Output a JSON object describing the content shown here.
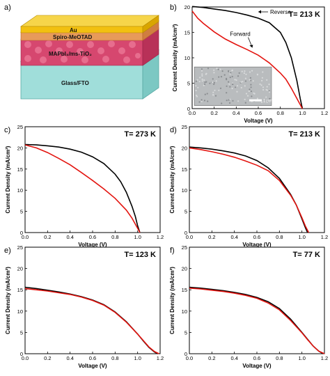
{
  "device": {
    "panel_label": "a)",
    "layers": [
      {
        "label": "Au",
        "color": "#f2c010"
      },
      {
        "label": "Spiro-MeOTAD",
        "color": "#e79a5a"
      },
      {
        "label": "MAPbI₃/ms-TiO₂",
        "color": "#d6476f"
      },
      {
        "label": "Glass/FTO",
        "color": "#8fd8d4"
      }
    ]
  },
  "colors": {
    "reverse": "#000000",
    "forward": "#e3140f",
    "inset_bg": "#b9bcbe"
  },
  "chart_data": [
    {
      "panel": "b)",
      "type": "line",
      "title": "T= 213 K",
      "xlabel": "Voltage (V)",
      "ylabel": "Current Density (mA/cm²)",
      "xlim": [
        0,
        1.2
      ],
      "ylim": [
        0,
        20
      ],
      "xticks": [
        "0.0",
        "0.2",
        "0.4",
        "0.6",
        "0.8",
        "1.0",
        "1.2"
      ],
      "yticks": [
        "0",
        "5",
        "10",
        "15",
        "20"
      ],
      "annotations": [
        "Reverse",
        "Forward"
      ],
      "inset_scale": "1 µm",
      "series": [
        {
          "name": "Reverse",
          "color": "#000000",
          "x": [
            0,
            0.1,
            0.2,
            0.3,
            0.4,
            0.5,
            0.6,
            0.7,
            0.8,
            0.85,
            0.9,
            0.95,
            0.98,
            1.0
          ],
          "y": [
            20.1,
            19.9,
            19.6,
            19.3,
            18.9,
            18.4,
            17.8,
            16.9,
            15.0,
            13.0,
            10.0,
            5.5,
            2.0,
            0
          ]
        },
        {
          "name": "Forward",
          "color": "#e3140f",
          "x": [
            0,
            0.05,
            0.1,
            0.2,
            0.3,
            0.4,
            0.5,
            0.6,
            0.7,
            0.8,
            0.85,
            0.9,
            0.95,
            0.98,
            1.0
          ],
          "y": [
            19.2,
            17.8,
            16.8,
            15.1,
            13.7,
            12.6,
            11.6,
            10.5,
            9.0,
            7.0,
            5.8,
            4.0,
            2.0,
            0.8,
            0
          ]
        }
      ]
    },
    {
      "panel": "c)",
      "type": "line",
      "title": "T= 273 K",
      "xlabel": "Voltage (V)",
      "ylabel": "Current Density (mA/cm²)",
      "xlim": [
        0,
        1.2
      ],
      "ylim": [
        0,
        25
      ],
      "xticks": [
        "0.0",
        "0.2",
        "0.4",
        "0.6",
        "0.8",
        "1.0",
        "1.2"
      ],
      "yticks": [
        "0",
        "5",
        "10",
        "15",
        "20",
        "25"
      ],
      "series": [
        {
          "name": "",
          "color": "#000000",
          "x": [
            0,
            0.1,
            0.2,
            0.3,
            0.4,
            0.5,
            0.6,
            0.7,
            0.8,
            0.85,
            0.9,
            0.95,
            0.98,
            1.0,
            1.02
          ],
          "y": [
            20.8,
            20.7,
            20.5,
            20.2,
            19.7,
            19.0,
            17.9,
            16.3,
            13.8,
            12.0,
            9.5,
            6.2,
            3.8,
            1.6,
            0
          ]
        },
        {
          "name": "",
          "color": "#e3140f",
          "x": [
            0,
            0.1,
            0.2,
            0.3,
            0.4,
            0.5,
            0.6,
            0.7,
            0.8,
            0.9,
            0.95,
            1.0,
            1.02
          ],
          "y": [
            20.7,
            20.0,
            18.9,
            17.5,
            16.0,
            14.2,
            12.3,
            10.3,
            8.1,
            5.3,
            3.4,
            1.0,
            0
          ]
        }
      ]
    },
    {
      "panel": "d)",
      "type": "line",
      "title": "T= 213 K",
      "xlabel": "Voltage (V)",
      "ylabel": "Current Density (mA/cm²)",
      "xlim": [
        0,
        1.2
      ],
      "ylim": [
        0,
        25
      ],
      "xticks": [
        "0.0",
        "0.2",
        "0.4",
        "0.6",
        "0.8",
        "1.0",
        "1.2"
      ],
      "yticks": [
        "0",
        "5",
        "10",
        "15",
        "20",
        "25"
      ],
      "series": [
        {
          "name": "",
          "color": "#000000",
          "x": [
            0,
            0.1,
            0.2,
            0.3,
            0.4,
            0.5,
            0.6,
            0.7,
            0.8,
            0.9,
            0.95,
            1.0,
            1.03,
            1.05
          ],
          "y": [
            20.2,
            20.0,
            19.7,
            19.3,
            18.8,
            18.1,
            17.0,
            15.3,
            12.8,
            9.0,
            6.5,
            3.2,
            1.2,
            0
          ]
        },
        {
          "name": "",
          "color": "#e3140f",
          "x": [
            0,
            0.1,
            0.2,
            0.3,
            0.4,
            0.5,
            0.6,
            0.7,
            0.8,
            0.9,
            0.95,
            1.0,
            1.03,
            1.06
          ],
          "y": [
            20.0,
            19.6,
            19.1,
            18.5,
            17.8,
            16.9,
            15.9,
            14.6,
            12.3,
            8.8,
            6.5,
            3.5,
            1.6,
            0
          ]
        }
      ]
    },
    {
      "panel": "e)",
      "type": "line",
      "title": "T= 123 K",
      "xlabel": "Voltage (V)",
      "ylabel": "Current Density (mA/cm²)",
      "xlim": [
        0,
        1.2
      ],
      "ylim": [
        0,
        25
      ],
      "xticks": [
        "0.0",
        "0.2",
        "0.4",
        "0.6",
        "0.8",
        "1.0",
        "1.2"
      ],
      "yticks": [
        "0",
        "5",
        "10",
        "15",
        "20",
        "25"
      ],
      "series": [
        {
          "name": "",
          "color": "#000000",
          "x": [
            0,
            0.1,
            0.2,
            0.3,
            0.4,
            0.5,
            0.6,
            0.7,
            0.8,
            0.9,
            1.0,
            1.05,
            1.1,
            1.15,
            1.18
          ],
          "y": [
            15.6,
            15.3,
            14.9,
            14.5,
            14.0,
            13.4,
            12.6,
            11.5,
            9.8,
            7.5,
            4.6,
            3.0,
            1.5,
            0.4,
            0
          ]
        },
        {
          "name": "",
          "color": "#e3140f",
          "x": [
            0,
            0.1,
            0.2,
            0.3,
            0.4,
            0.5,
            0.6,
            0.7,
            0.8,
            0.9,
            1.0,
            1.05,
            1.1,
            1.15,
            1.19
          ],
          "y": [
            15.3,
            15.0,
            14.7,
            14.3,
            13.9,
            13.3,
            12.5,
            11.4,
            9.7,
            7.4,
            4.6,
            3.1,
            1.6,
            0.5,
            0
          ]
        }
      ]
    },
    {
      "panel": "f)",
      "type": "line",
      "title": "T= 77 K",
      "xlabel": "Voltage (V)",
      "ylabel": "Current Density (mA/cm²)",
      "xlim": [
        0,
        1.2
      ],
      "ylim": [
        0,
        25
      ],
      "xticks": [
        "0.0",
        "0.2",
        "0.4",
        "0.6",
        "0.8",
        "1.0",
        "1.2"
      ],
      "yticks": [
        "0",
        "5",
        "10",
        "15",
        "20",
        "25"
      ],
      "series": [
        {
          "name": "",
          "color": "#000000",
          "x": [
            0,
            0.1,
            0.2,
            0.3,
            0.4,
            0.5,
            0.6,
            0.7,
            0.8,
            0.9,
            1.0,
            1.05,
            1.1,
            1.15,
            1.19
          ],
          "y": [
            15.6,
            15.4,
            15.1,
            14.8,
            14.4,
            13.9,
            13.2,
            12.2,
            10.6,
            8.1,
            5.0,
            3.4,
            1.8,
            0.6,
            0
          ]
        },
        {
          "name": "",
          "color": "#e3140f",
          "x": [
            0,
            0.1,
            0.2,
            0.3,
            0.4,
            0.5,
            0.6,
            0.7,
            0.8,
            0.9,
            1.0,
            1.05,
            1.1,
            1.15,
            1.2
          ],
          "y": [
            15.4,
            15.2,
            14.9,
            14.6,
            14.2,
            13.7,
            13.0,
            11.9,
            10.3,
            7.8,
            4.9,
            3.3,
            1.8,
            0.6,
            0
          ]
        }
      ]
    }
  ]
}
